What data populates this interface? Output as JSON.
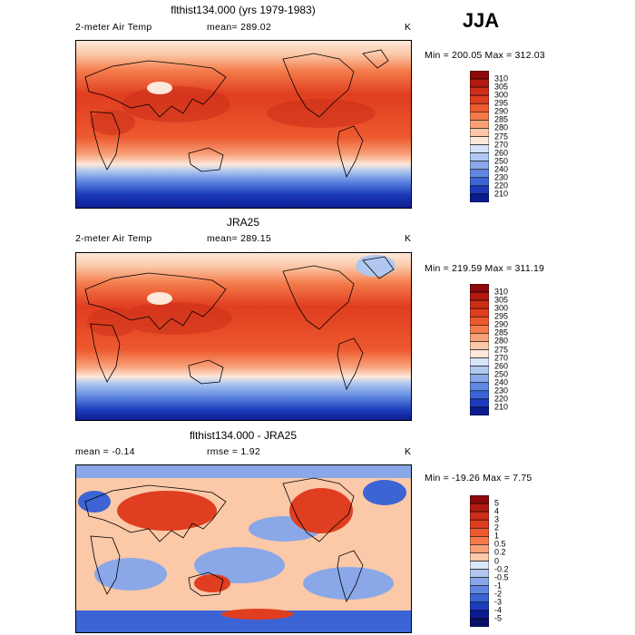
{
  "season": "JJA",
  "chart_data": [
    {
      "type": "heatmap",
      "title": "flthist134.000 (yrs 1979-1983)",
      "left_label": "2-meter Air Temp",
      "center_label": "mean= 289.02",
      "unit": "K",
      "minmax": "Min = 200.05 Max = 312.03",
      "colorbar": {
        "levels": [
          "310",
          "305",
          "300",
          "295",
          "290",
          "285",
          "280",
          "275",
          "270",
          "260",
          "250",
          "240",
          "230",
          "220",
          "210"
        ],
        "colors": [
          "#8c0a0a",
          "#b01a10",
          "#cc2e18",
          "#e03e20",
          "#ee5a30",
          "#f47c4c",
          "#f8a078",
          "#fbc8a8",
          "#fde8da",
          "#d6e4f8",
          "#b0c8f0",
          "#8aa8e8",
          "#6088e0",
          "#3c64d4",
          "#1c3cbc",
          "#0c1c90"
        ]
      }
    },
    {
      "type": "heatmap",
      "title": "JRA25",
      "left_label": "2-meter Air Temp",
      "center_label": "mean= 289.15",
      "unit": "K",
      "minmax": "Min = 219.59 Max = 311.19",
      "colorbar": {
        "levels": [
          "310",
          "305",
          "300",
          "295",
          "290",
          "285",
          "280",
          "275",
          "270",
          "260",
          "250",
          "240",
          "230",
          "220",
          "210"
        ],
        "colors": [
          "#8c0a0a",
          "#b01a10",
          "#cc2e18",
          "#e03e20",
          "#ee5a30",
          "#f47c4c",
          "#f8a078",
          "#fbc8a8",
          "#fde8da",
          "#d6e4f8",
          "#b0c8f0",
          "#8aa8e8",
          "#6088e0",
          "#3c64d4",
          "#1c3cbc",
          "#0c1c90"
        ]
      }
    },
    {
      "type": "heatmap",
      "title": "flthist134.000 - JRA25",
      "left_label": "mean = -0.14",
      "center_label": "rmse = 1.92",
      "unit": "K",
      "minmax": "Min = -19.26 Max = 7.75",
      "colorbar": {
        "levels": [
          "5",
          "4",
          "3",
          "2",
          "1",
          "0.5",
          "0.2",
          "0",
          "-0.2",
          "-0.5",
          "-1",
          "-2",
          "-3",
          "-4",
          "-5"
        ],
        "colors": [
          "#8c0a0a",
          "#b01a10",
          "#cc2e18",
          "#e03e20",
          "#ee5a30",
          "#f47c4c",
          "#f8a078",
          "#fbc8a8",
          "#dce8f8",
          "#b0c8f0",
          "#8aa8e8",
          "#6088e0",
          "#3c64d4",
          "#1c3cbc",
          "#0c1c90",
          "#081068"
        ]
      }
    }
  ]
}
